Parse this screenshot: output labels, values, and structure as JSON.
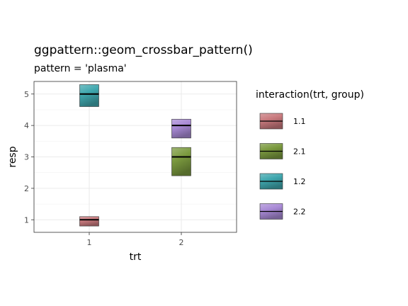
{
  "chart_data": {
    "type": "crossbar",
    "title": "ggpattern::geom_crossbar_pattern()",
    "subtitle": "pattern = 'plasma'",
    "xlabel": "trt",
    "ylabel": "resp",
    "categories": [
      "1",
      "2"
    ],
    "ylim": [
      0.6,
      5.4
    ],
    "y_ticks": [
      1,
      2,
      3,
      4,
      5
    ],
    "grid": true,
    "legend": {
      "title": "interaction(trt, group)",
      "position": "right",
      "entries": [
        {
          "label": "1.1",
          "color": "#c97a7e"
        },
        {
          "label": "2.1",
          "color": "#7b9a3f"
        },
        {
          "label": "1.2",
          "color": "#3fa7ae"
        },
        {
          "label": "2.2",
          "color": "#a98ad6"
        }
      ]
    },
    "series": [
      {
        "name": "1.1",
        "x": "1",
        "y": 1.0,
        "lower": 0.8,
        "upper": 1.1,
        "color": "#c97a7e"
      },
      {
        "name": "2.1",
        "x": "2",
        "y": 3.0,
        "lower": 2.4,
        "upper": 3.3,
        "color": "#7b9a3f"
      },
      {
        "name": "1.2",
        "x": "1",
        "y": 5.0,
        "lower": 4.6,
        "upper": 5.3,
        "color": "#3fa7ae"
      },
      {
        "name": "2.2",
        "x": "2",
        "y": 4.0,
        "lower": 3.6,
        "upper": 4.2,
        "color": "#a98ad6"
      }
    ]
  }
}
